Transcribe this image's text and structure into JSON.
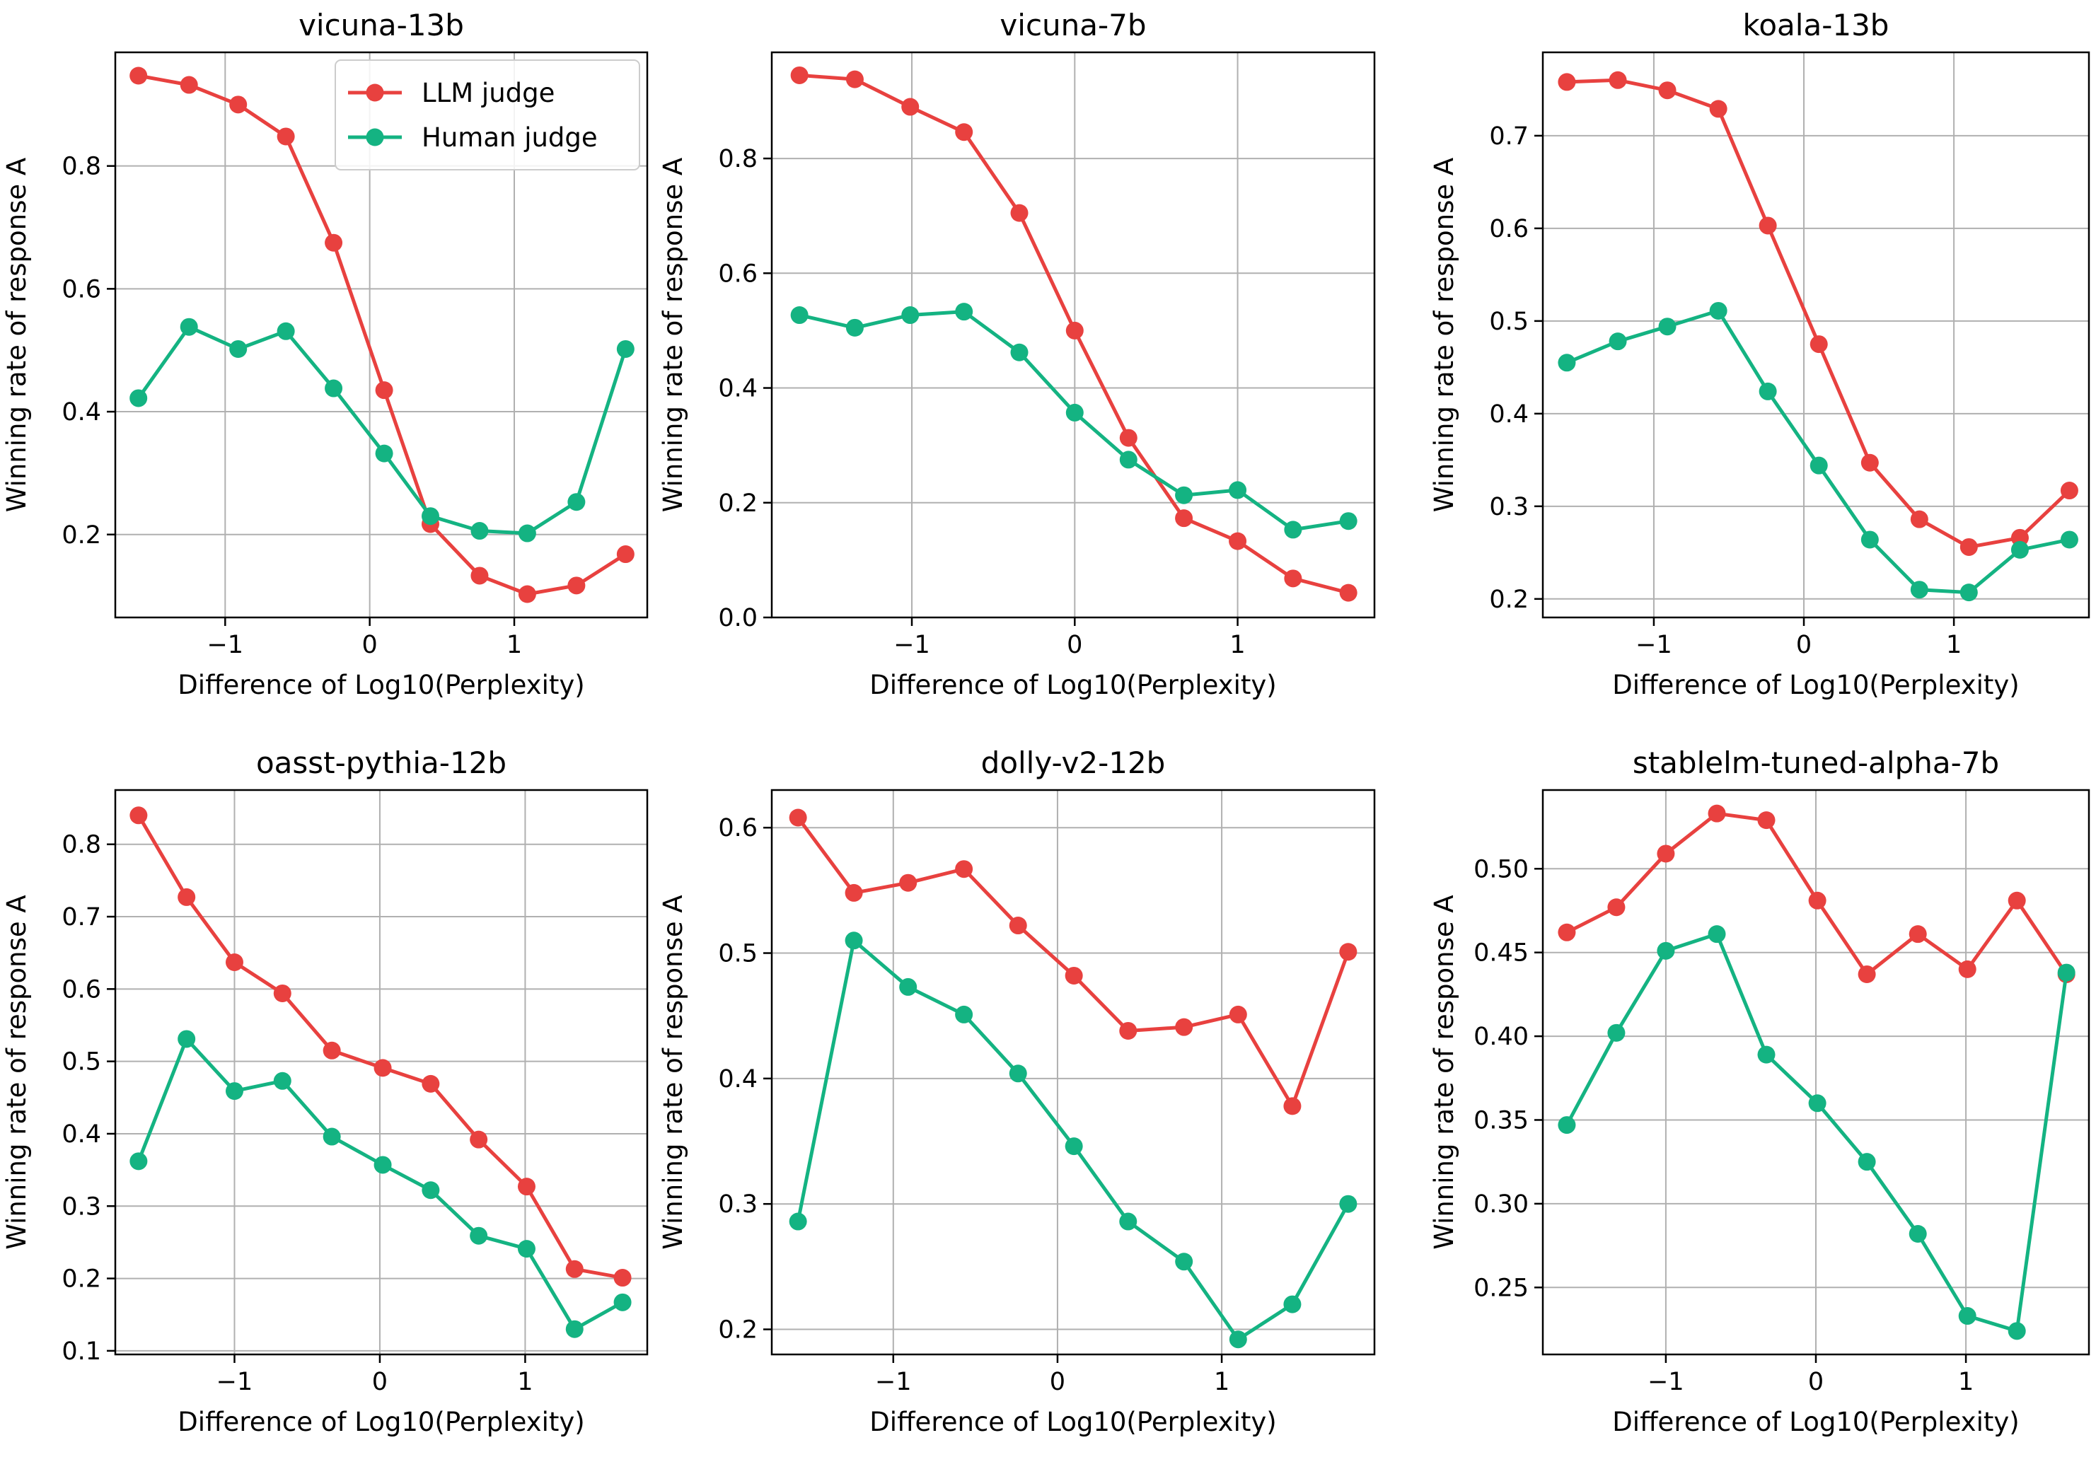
{
  "colors": {
    "llm": "#e8413f",
    "human": "#14b382"
  },
  "chart_data": [
    {
      "type": "line",
      "title": "vicuna-13b",
      "xlabel": "Difference of Log10(Perplexity)",
      "ylabel": "Winning rate of response A",
      "xlim": [
        -1.76,
        1.92
      ],
      "ylim": [
        0.065,
        0.985
      ],
      "xticks": [
        -1,
        0,
        1
      ],
      "yticks": [
        0.2,
        0.4,
        0.6,
        0.8
      ],
      "xtick_labels": [
        "−1",
        "0",
        "1"
      ],
      "ytick_labels": [
        "0.2",
        "0.4",
        "0.6",
        "0.8"
      ],
      "legend": {
        "position": "top-right",
        "entries": [
          "LLM judge",
          "Human judge"
        ]
      },
      "series": [
        {
          "name": "LLM judge",
          "color_key": "llm",
          "x": [
            -1.6,
            -1.25,
            -0.91,
            -0.58,
            -0.25,
            0.1,
            0.42,
            0.76,
            1.09,
            1.43,
            1.77
          ],
          "y": [
            0.947,
            0.932,
            0.9,
            0.848,
            0.675,
            0.435,
            0.217,
            0.133,
            0.103,
            0.117,
            0.168
          ]
        },
        {
          "name": "Human judge",
          "color_key": "human",
          "x": [
            -1.6,
            -1.25,
            -0.91,
            -0.58,
            -0.25,
            0.1,
            0.42,
            0.76,
            1.09,
            1.43,
            1.77
          ],
          "y": [
            0.422,
            0.538,
            0.502,
            0.531,
            0.438,
            0.332,
            0.23,
            0.206,
            0.202,
            0.253,
            0.502
          ]
        }
      ]
    },
    {
      "type": "line",
      "title": "vicuna-7b",
      "xlabel": "Difference of Log10(Perplexity)",
      "ylabel": "Winning rate of response A",
      "xlim": [
        -1.86,
        1.84
      ],
      "ylim": [
        0.0,
        0.985
      ],
      "xticks": [
        -1,
        0,
        1
      ],
      "yticks": [
        0.0,
        0.2,
        0.4,
        0.6,
        0.8
      ],
      "xtick_labels": [
        "−1",
        "0",
        "1"
      ],
      "ytick_labels": [
        "0.0",
        "0.2",
        "0.4",
        "0.6",
        "0.8"
      ],
      "series": [
        {
          "name": "LLM judge",
          "color_key": "llm",
          "x": [
            -1.69,
            -1.35,
            -1.01,
            -0.68,
            -0.34,
            -0.0,
            0.33,
            0.67,
            1.0,
            1.34,
            1.68
          ],
          "y": [
            0.945,
            0.938,
            0.89,
            0.846,
            0.705,
            0.5,
            0.313,
            0.173,
            0.133,
            0.068,
            0.043
          ]
        },
        {
          "name": "Human judge",
          "color_key": "human",
          "x": [
            -1.69,
            -1.35,
            -1.01,
            -0.68,
            -0.34,
            -0.0,
            0.33,
            0.67,
            1.0,
            1.34,
            1.68
          ],
          "y": [
            0.527,
            0.505,
            0.527,
            0.533,
            0.462,
            0.357,
            0.275,
            0.213,
            0.222,
            0.153,
            0.168
          ]
        }
      ]
    },
    {
      "type": "line",
      "title": "koala-13b",
      "xlabel": "Difference of Log10(Perplexity)",
      "ylabel": "Winning rate of response A",
      "xlim": [
        -1.74,
        1.9
      ],
      "ylim": [
        0.18,
        0.79
      ],
      "xticks": [
        -1,
        0,
        1
      ],
      "yticks": [
        0.2,
        0.3,
        0.4,
        0.5,
        0.6,
        0.7
      ],
      "xtick_labels": [
        "−1",
        "0",
        "1"
      ],
      "ytick_labels": [
        "0.2",
        "0.3",
        "0.4",
        "0.5",
        "0.6",
        "0.7"
      ],
      "series": [
        {
          "name": "LLM judge",
          "color_key": "llm",
          "x": [
            -1.58,
            -1.24,
            -0.91,
            -0.57,
            -0.24,
            0.1,
            0.44,
            0.77,
            1.1,
            1.44,
            1.77
          ],
          "y": [
            0.758,
            0.76,
            0.749,
            0.729,
            0.603,
            0.475,
            0.347,
            0.286,
            0.256,
            0.266,
            0.317
          ]
        },
        {
          "name": "Human judge",
          "color_key": "human",
          "x": [
            -1.58,
            -1.24,
            -0.91,
            -0.57,
            -0.24,
            0.1,
            0.44,
            0.77,
            1.1,
            1.44,
            1.77
          ],
          "y": [
            0.455,
            0.478,
            0.494,
            0.511,
            0.424,
            0.344,
            0.264,
            0.21,
            0.207,
            0.253,
            0.264
          ]
        }
      ]
    },
    {
      "type": "line",
      "title": "oasst-pythia-12b",
      "xlabel": "Difference of Log10(Perplexity)",
      "ylabel": "Winning rate of response A",
      "xlim": [
        -1.82,
        1.84
      ],
      "ylim": [
        0.095,
        0.875
      ],
      "xticks": [
        -1,
        0,
        1
      ],
      "yticks": [
        0.1,
        0.2,
        0.3,
        0.4,
        0.5,
        0.6,
        0.7,
        0.8
      ],
      "xtick_labels": [
        "−1",
        "0",
        "1"
      ],
      "ytick_labels": [
        "0.1",
        "0.2",
        "0.3",
        "0.4",
        "0.5",
        "0.6",
        "0.7",
        "0.8"
      ],
      "series": [
        {
          "name": "LLM judge",
          "color_key": "llm",
          "x": [
            -1.66,
            -1.33,
            -1.0,
            -0.67,
            -0.33,
            0.02,
            0.35,
            0.68,
            1.01,
            1.34,
            1.67
          ],
          "y": [
            0.84,
            0.727,
            0.637,
            0.594,
            0.515,
            0.491,
            0.469,
            0.392,
            0.327,
            0.213,
            0.201
          ]
        },
        {
          "name": "Human judge",
          "color_key": "human",
          "x": [
            -1.66,
            -1.33,
            -1.0,
            -0.67,
            -0.33,
            0.02,
            0.35,
            0.68,
            1.01,
            1.34,
            1.67
          ],
          "y": [
            0.362,
            0.531,
            0.459,
            0.473,
            0.396,
            0.357,
            0.322,
            0.259,
            0.241,
            0.13,
            0.167
          ]
        }
      ]
    },
    {
      "type": "line",
      "title": "dolly-v2-12b",
      "xlabel": "Difference of Log10(Perplexity)",
      "ylabel": "Winning rate of response A",
      "xlim": [
        -1.74,
        1.93
      ],
      "ylim": [
        0.18,
        0.63
      ],
      "xticks": [
        -1,
        0,
        1
      ],
      "yticks": [
        0.2,
        0.3,
        0.4,
        0.5,
        0.6
      ],
      "xtick_labels": [
        "−1",
        "0",
        "1"
      ],
      "ytick_labels": [
        "0.2",
        "0.3",
        "0.4",
        "0.5",
        "0.6"
      ],
      "series": [
        {
          "name": "LLM judge",
          "color_key": "llm",
          "x": [
            -1.58,
            -1.24,
            -0.91,
            -0.57,
            -0.24,
            0.1,
            0.43,
            0.77,
            1.1,
            1.43,
            1.77
          ],
          "y": [
            0.608,
            0.548,
            0.556,
            0.567,
            0.522,
            0.482,
            0.438,
            0.441,
            0.451,
            0.378,
            0.501
          ]
        },
        {
          "name": "Human judge",
          "color_key": "human",
          "x": [
            -1.58,
            -1.24,
            -0.91,
            -0.57,
            -0.24,
            0.1,
            0.43,
            0.77,
            1.1,
            1.43,
            1.77
          ],
          "y": [
            0.286,
            0.51,
            0.473,
            0.451,
            0.404,
            0.346,
            0.286,
            0.254,
            0.192,
            0.22,
            0.3
          ]
        }
      ]
    },
    {
      "type": "line",
      "title": "stablelm-tuned-alpha-7b",
      "xlabel": "Difference of Log10(Perplexity)",
      "ylabel": "Winning rate of response A",
      "xlim": [
        -1.82,
        1.82
      ],
      "ylim": [
        0.21,
        0.547
      ],
      "xticks": [
        -1,
        0,
        1
      ],
      "yticks": [
        0.25,
        0.3,
        0.35,
        0.4,
        0.45,
        0.5
      ],
      "xtick_labels": [
        "−1",
        "0",
        "1"
      ],
      "ytick_labels": [
        "0.25",
        "0.30",
        "0.35",
        "0.40",
        "0.45",
        "0.50"
      ],
      "series": [
        {
          "name": "LLM judge",
          "color_key": "llm",
          "x": [
            -1.66,
            -1.33,
            -1.0,
            -0.66,
            -0.33,
            0.01,
            0.34,
            0.68,
            1.01,
            1.34,
            1.67
          ],
          "y": [
            0.462,
            0.477,
            0.509,
            0.533,
            0.529,
            0.481,
            0.437,
            0.461,
            0.44,
            0.481,
            0.437
          ]
        },
        {
          "name": "Human judge",
          "color_key": "human",
          "x": [
            -1.66,
            -1.33,
            -1.0,
            -0.66,
            -0.33,
            0.01,
            0.34,
            0.68,
            1.01,
            1.34,
            1.67
          ],
          "y": [
            0.347,
            0.402,
            0.451,
            0.461,
            0.389,
            0.36,
            0.325,
            0.282,
            0.233,
            0.224,
            0.438
          ]
        }
      ]
    }
  ]
}
